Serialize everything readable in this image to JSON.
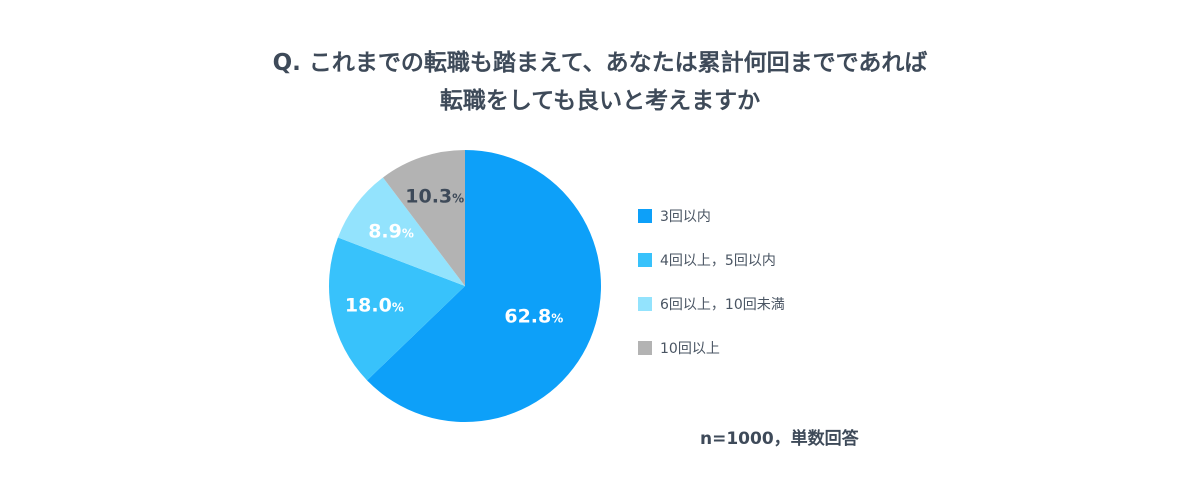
{
  "title": {
    "line1": "Q. これまでの転職も踏まえて、あなたは累計何回までであれば",
    "line2": "転職をしても良いと考えますか"
  },
  "chart_data": {
    "type": "pie",
    "unit": "%",
    "slices": [
      {
        "label": "3回以内",
        "value": 62.8,
        "color": "#0da0f9"
      },
      {
        "label": "4回以上，5回以内",
        "value": 18.0,
        "color": "#38c2fb"
      },
      {
        "label": "6回以上，10回未満",
        "value": 8.9,
        "color": "#93e3fd"
      },
      {
        "label": "10回以上",
        "value": 10.3,
        "color": "#b3b3b3"
      }
    ],
    "legend_position": "right"
  },
  "note": "n=1000，単数回答"
}
